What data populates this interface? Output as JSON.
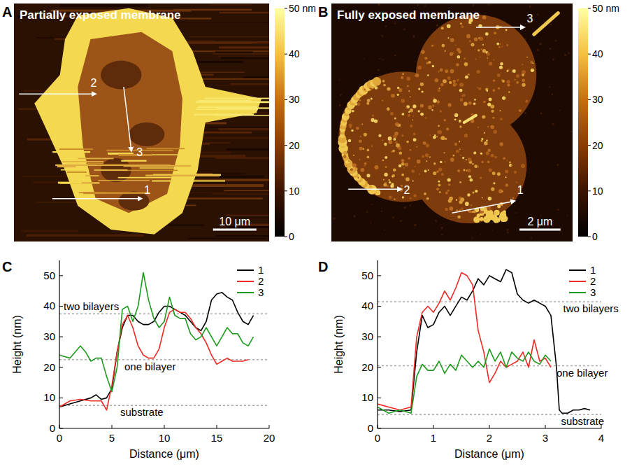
{
  "chart_data": [
    {
      "type": "image",
      "label": "A",
      "title": "Partially exposed membrane",
      "colorbar": {
        "range": [
          0,
          50
        ],
        "ticks": [
          0,
          10,
          20,
          30,
          40,
          {
            "value": 50,
            "label": "50 nm"
          }
        ]
      },
      "scale_bar": "10 μm",
      "profile_labels": [
        "1",
        "2",
        "3"
      ]
    },
    {
      "type": "image",
      "label": "B",
      "title": "Fully exposed membrane",
      "colorbar": {
        "range": [
          0,
          50
        ],
        "ticks": [
          0,
          10,
          20,
          30,
          40,
          {
            "value": 50,
            "label": "50 nm"
          }
        ]
      },
      "scale_bar": "2 μm",
      "profile_labels": [
        "1",
        "2",
        "3"
      ]
    },
    {
      "type": "line",
      "label": "C",
      "x_label": "Distance (μm)",
      "y_label": "Height (nm)",
      "xlim": [
        0,
        20
      ],
      "xticks": [
        0,
        5,
        10,
        15,
        20
      ],
      "ylim": [
        0,
        55
      ],
      "yticks": [
        0,
        10,
        20,
        30,
        40,
        50
      ],
      "legend": "top right",
      "annotations": [
        {
          "text": "two bilayers",
          "y": 37.5
        },
        {
          "text": "one bilayer",
          "y": 22.5
        },
        {
          "text": "substrate",
          "y": 7.5
        }
      ],
      "series": [
        {
          "name": "1",
          "color": "#000000",
          "x": [
            0,
            1,
            2,
            3,
            3.5,
            4,
            4.5,
            5,
            5.5,
            6,
            6.5,
            7,
            7.5,
            8,
            8.5,
            9,
            9.5,
            10,
            10.5,
            11,
            11.5,
            12,
            12.5,
            13,
            13.5,
            14,
            14.5,
            15,
            15.5,
            16,
            16.5,
            17,
            17.5,
            18,
            18.5
          ],
          "values": [
            7,
            8,
            9,
            10,
            11,
            9.5,
            10,
            13,
            25,
            33,
            37,
            37,
            35,
            34,
            34,
            35,
            38,
            40,
            40,
            39,
            38,
            37,
            35,
            33,
            32,
            35,
            42,
            44,
            44.5,
            43,
            42,
            38,
            35,
            34,
            37
          ]
        },
        {
          "name": "2",
          "color": "#ee2a24",
          "x": [
            0,
            1,
            2,
            3,
            4,
            4.5,
            5,
            5.5,
            6,
            6.5,
            7,
            7.5,
            8,
            8.5,
            9,
            9.5,
            10,
            10.5,
            11,
            11.5,
            12,
            12.5,
            13,
            13.5,
            14,
            14.5,
            15,
            15.5,
            16,
            16.5,
            17,
            17.5,
            18
          ],
          "values": [
            7,
            9,
            9.5,
            9,
            9,
            6,
            14,
            25,
            34,
            37,
            33,
            27,
            24,
            23,
            23,
            26,
            33,
            38,
            39,
            38,
            38,
            36,
            33,
            31,
            28,
            24,
            21,
            22,
            23,
            22,
            22,
            22,
            22.5
          ]
        },
        {
          "name": "3",
          "color": "#1e9a1e",
          "x": [
            0,
            1,
            2,
            2.5,
            3,
            3.5,
            4,
            4.5,
            5,
            5.5,
            6,
            6.5,
            7,
            7.5,
            8,
            8.5,
            9,
            9.5,
            10,
            10.5,
            11,
            11.5,
            12,
            12.5,
            13,
            13.5,
            14,
            14.5,
            15,
            15.5,
            16,
            16.5,
            17,
            17.5,
            18,
            18.5
          ],
          "values": [
            24,
            23,
            27,
            25,
            22,
            23,
            23,
            17,
            12,
            20,
            39,
            40,
            35,
            40,
            51,
            42,
            36,
            33,
            35,
            43,
            37,
            36,
            36,
            31,
            29,
            30,
            33,
            30,
            27,
            30,
            33,
            31,
            31,
            28,
            27,
            30
          ]
        }
      ]
    },
    {
      "type": "line",
      "label": "D",
      "x_label": "Distance (μm)",
      "y_label": "Height (nm)",
      "xlim": [
        0,
        4
      ],
      "xticks": [
        0,
        1,
        2,
        3,
        4
      ],
      "ylim": [
        0,
        55
      ],
      "yticks": [
        0,
        10,
        20,
        30,
        40,
        50
      ],
      "legend": "top right",
      "annotations": [
        {
          "text": "two bilayers",
          "y": 41.5
        },
        {
          "text": "one bilayer",
          "y": 20.5
        },
        {
          "text": "substrate",
          "y": 4.5
        }
      ],
      "series": [
        {
          "name": "1",
          "color": "#000000",
          "x": [
            0,
            0.2,
            0.4,
            0.6,
            0.7,
            0.8,
            0.9,
            1.0,
            1.1,
            1.2,
            1.3,
            1.4,
            1.5,
            1.6,
            1.7,
            1.8,
            1.9,
            2.0,
            2.1,
            2.2,
            2.3,
            2.4,
            2.5,
            2.6,
            2.7,
            2.8,
            2.9,
            3.0,
            3.1,
            3.2,
            3.25,
            3.3,
            3.4,
            3.5,
            3.6,
            3.7,
            3.8
          ],
          "values": [
            6,
            6,
            5.5,
            6,
            25,
            37,
            33,
            34,
            38,
            40,
            37,
            40,
            43,
            42,
            45,
            49,
            47,
            50,
            49,
            48,
            52,
            51,
            44,
            42,
            41,
            42,
            41,
            40,
            37,
            20,
            6,
            5,
            5,
            6,
            6,
            6.5,
            6
          ]
        },
        {
          "name": "2",
          "color": "#ee2a24",
          "x": [
            0,
            0.2,
            0.4,
            0.6,
            0.7,
            0.8,
            0.9,
            1.0,
            1.1,
            1.2,
            1.3,
            1.4,
            1.5,
            1.6,
            1.7,
            1.8,
            1.9,
            2.0,
            2.1,
            2.2,
            2.3,
            2.4,
            2.5,
            2.6,
            2.7,
            2.8,
            2.9,
            3.0,
            3.1
          ],
          "values": [
            8,
            7,
            6,
            7,
            30,
            38,
            40,
            38,
            41,
            45,
            42,
            46,
            51,
            50,
            47,
            32,
            25,
            15,
            18,
            22,
            20,
            21,
            22,
            25,
            20,
            29,
            22,
            23,
            20
          ]
        },
        {
          "name": "3",
          "color": "#1e9a1e",
          "x": [
            0,
            0.2,
            0.4,
            0.6,
            0.7,
            0.8,
            0.9,
            1.0,
            1.1,
            1.2,
            1.3,
            1.4,
            1.5,
            1.6,
            1.7,
            1.8,
            1.9,
            2.0,
            2.1,
            2.2,
            2.3,
            2.4,
            2.5,
            2.6,
            2.7,
            2.8,
            2.9,
            3.0,
            3.1
          ],
          "values": [
            7,
            5,
            6,
            5,
            17,
            21,
            19,
            19,
            22,
            18,
            21,
            19,
            24,
            22,
            20,
            22,
            20,
            26,
            22,
            25,
            20,
            25,
            23,
            22,
            25,
            22,
            21,
            24,
            22
          ]
        }
      ]
    }
  ]
}
